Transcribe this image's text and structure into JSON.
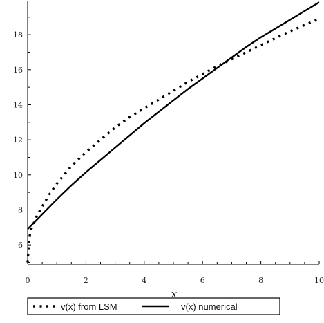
{
  "chart_data": {
    "type": "line",
    "xlabel": "x",
    "ylabel": "",
    "xlim": [
      0,
      10
    ],
    "ylim": [
      4.9,
      19.9
    ],
    "x_ticks": [
      0,
      2,
      4,
      6,
      8,
      10
    ],
    "y_ticks": [
      6,
      8,
      10,
      12,
      14,
      16,
      18
    ],
    "grid": false,
    "legend_position": "bottom",
    "series": [
      {
        "name": "v(x) from LSM",
        "style": "dotted",
        "color": "#000000",
        "x": [
          0,
          0.05,
          0.1,
          0.2,
          0.3,
          0.5,
          0.75,
          1,
          1.5,
          2,
          2.5,
          3,
          3.5,
          4,
          4.5,
          5,
          5.5,
          6,
          6.5,
          7,
          7.5,
          8,
          8.5,
          9,
          9.5,
          10
        ],
        "y": [
          5.0,
          6.3,
          6.8,
          7.2,
          7.6,
          8.2,
          8.9,
          9.5,
          10.5,
          11.3,
          12.0,
          12.7,
          13.3,
          13.8,
          14.3,
          14.8,
          15.3,
          15.75,
          16.2,
          16.6,
          17.0,
          17.4,
          17.8,
          18.2,
          18.55,
          18.9
        ]
      },
      {
        "name": "v(x) numerical",
        "style": "solid",
        "color": "#000000",
        "x": [
          0,
          0.5,
          1,
          1.5,
          2,
          2.5,
          3,
          3.5,
          4,
          4.5,
          5,
          5.5,
          6,
          6.5,
          7,
          7.5,
          8,
          8.5,
          9,
          9.5,
          10
        ],
        "y": [
          6.9,
          7.75,
          8.6,
          9.4,
          10.15,
          10.85,
          11.55,
          12.25,
          12.95,
          13.6,
          14.25,
          14.9,
          15.5,
          16.1,
          16.7,
          17.3,
          17.85,
          18.35,
          18.85,
          19.35,
          19.85
        ]
      }
    ]
  }
}
